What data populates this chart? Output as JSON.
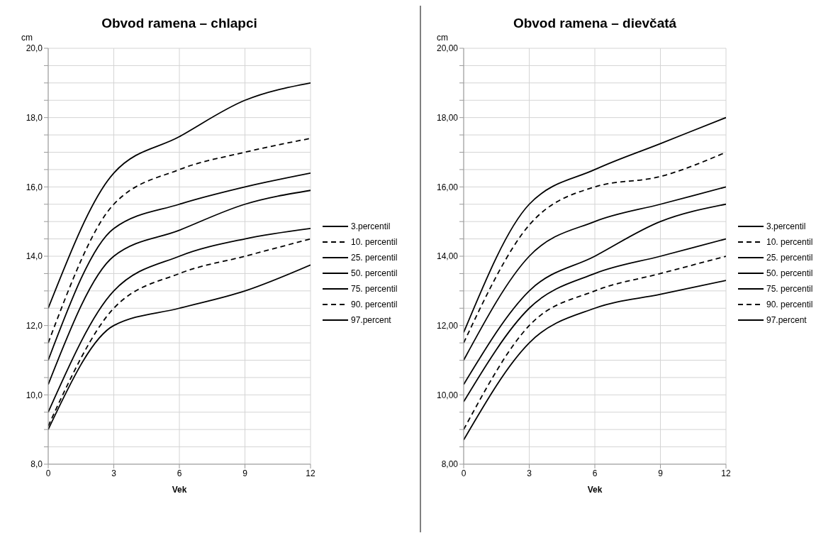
{
  "chart_data": [
    {
      "type": "line",
      "title": "Obvod ramena – chlapci",
      "ylabel": "cm",
      "xlabel": "Vek",
      "x": [
        0,
        3,
        6,
        9,
        12
      ],
      "xlim": [
        0,
        12
      ],
      "xticks": [
        0,
        3,
        6,
        9,
        12
      ],
      "ylim": [
        8,
        20
      ],
      "yticks": [
        {
          "value": 8,
          "label": "8,0"
        },
        {
          "value": 8.5,
          "label": null
        },
        {
          "value": 9,
          "label": null
        },
        {
          "value": 9.5,
          "label": null
        },
        {
          "value": 10,
          "label": "10,0"
        },
        {
          "value": 10.5,
          "label": null
        },
        {
          "value": 11,
          "label": null
        },
        {
          "value": 11.5,
          "label": null
        },
        {
          "value": 12,
          "label": "12,0"
        },
        {
          "value": 12.5,
          "label": null
        },
        {
          "value": 13,
          "label": null
        },
        {
          "value": 13.5,
          "label": null
        },
        {
          "value": 14,
          "label": "14,0"
        },
        {
          "value": 14.5,
          "label": null
        },
        {
          "value": 15,
          "label": null
        },
        {
          "value": 15.5,
          "label": null
        },
        {
          "value": 16,
          "label": "16,0"
        },
        {
          "value": 16.5,
          "label": null
        },
        {
          "value": 17,
          "label": null
        },
        {
          "value": 17.5,
          "label": null
        },
        {
          "value": 18,
          "label": "18,0"
        },
        {
          "value": 18.5,
          "label": null
        },
        {
          "value": 19,
          "label": null
        },
        {
          "value": 19.5,
          "label": null
        },
        {
          "value": 20,
          "label": "20,0"
        }
      ],
      "grid": true,
      "legend": "right",
      "marker": "none",
      "series": [
        {
          "name": "3.percentil",
          "color": "#000000",
          "line_style": "solid",
          "values": [
            12.5,
            16.4,
            17.45,
            18.5,
            19.0
          ]
        },
        {
          "name": "10. percentil",
          "color": "#000000",
          "line_style": "dashed",
          "values": [
            11.5,
            15.5,
            16.5,
            17.0,
            17.4
          ]
        },
        {
          "name": "25. percentil",
          "color": "#000000",
          "line_style": "solid",
          "values": [
            11.0,
            14.8,
            15.5,
            16.0,
            16.4
          ]
        },
        {
          "name": "50. percentil",
          "color": "#000000",
          "line_style": "solid",
          "values": [
            10.3,
            14.0,
            14.75,
            15.5,
            15.9
          ]
        },
        {
          "name": "75. percentil",
          "color": "#000000",
          "line_style": "solid",
          "values": [
            9.5,
            13.0,
            14.0,
            14.5,
            14.8
          ]
        },
        {
          "name": "90. percentil",
          "color": "#000000",
          "line_style": "dashed",
          "values": [
            9.1,
            12.5,
            13.5,
            14.0,
            14.5
          ]
        },
        {
          "name": "97.percent",
          "color": "#000000",
          "line_style": "solid",
          "values": [
            9.0,
            12.0,
            12.5,
            13.0,
            13.75
          ]
        }
      ]
    },
    {
      "type": "line",
      "title": "Obvod ramena – dievčatá",
      "ylabel": "cm",
      "xlabel": "Vek",
      "x": [
        0,
        3,
        6,
        9,
        12
      ],
      "xlim": [
        0,
        12
      ],
      "xticks": [
        0,
        3,
        6,
        9,
        12
      ],
      "ylim": [
        8,
        20
      ],
      "yticks": [
        {
          "value": 8,
          "label": "8,00"
        },
        {
          "value": 8.5,
          "label": null
        },
        {
          "value": 9,
          "label": null
        },
        {
          "value": 9.5,
          "label": null
        },
        {
          "value": 10,
          "label": "10,00"
        },
        {
          "value": 10.5,
          "label": null
        },
        {
          "value": 11,
          "label": null
        },
        {
          "value": 11.5,
          "label": null
        },
        {
          "value": 12,
          "label": "12,00"
        },
        {
          "value": 12.5,
          "label": null
        },
        {
          "value": 13,
          "label": null
        },
        {
          "value": 13.5,
          "label": null
        },
        {
          "value": 14,
          "label": "14,00"
        },
        {
          "value": 14.5,
          "label": null
        },
        {
          "value": 15,
          "label": null
        },
        {
          "value": 15.5,
          "label": null
        },
        {
          "value": 16,
          "label": "16,00"
        },
        {
          "value": 16.5,
          "label": null
        },
        {
          "value": 17,
          "label": null
        },
        {
          "value": 17.5,
          "label": null
        },
        {
          "value": 18,
          "label": "18,00"
        },
        {
          "value": 18.5,
          "label": null
        },
        {
          "value": 19,
          "label": null
        },
        {
          "value": 19.5,
          "label": null
        },
        {
          "value": 20,
          "label": "20,00"
        }
      ],
      "grid": true,
      "legend": "right",
      "marker": "none",
      "series": [
        {
          "name": "3.percentil",
          "color": "#000000",
          "line_style": "solid",
          "values": [
            11.8,
            15.5,
            16.5,
            17.25,
            18.0
          ]
        },
        {
          "name": "10. percentil",
          "color": "#000000",
          "line_style": "dashed",
          "values": [
            11.5,
            14.9,
            16.0,
            16.3,
            17.0
          ]
        },
        {
          "name": "25. percentil",
          "color": "#000000",
          "line_style": "solid",
          "values": [
            11.0,
            14.0,
            15.0,
            15.5,
            16.0
          ]
        },
        {
          "name": "50. percentil",
          "color": "#000000",
          "line_style": "solid",
          "values": [
            10.3,
            13.0,
            14.0,
            15.0,
            15.5
          ]
        },
        {
          "name": "75. percentil",
          "color": "#000000",
          "line_style": "solid",
          "values": [
            9.8,
            12.5,
            13.5,
            14.0,
            14.5
          ]
        },
        {
          "name": "90. percentil",
          "color": "#000000",
          "line_style": "dashed",
          "values": [
            9.0,
            12.0,
            13.0,
            13.5,
            14.0
          ]
        },
        {
          "name": "97.percent",
          "color": "#000000",
          "line_style": "solid",
          "values": [
            8.7,
            11.5,
            12.5,
            12.9,
            13.3
          ]
        }
      ]
    }
  ]
}
